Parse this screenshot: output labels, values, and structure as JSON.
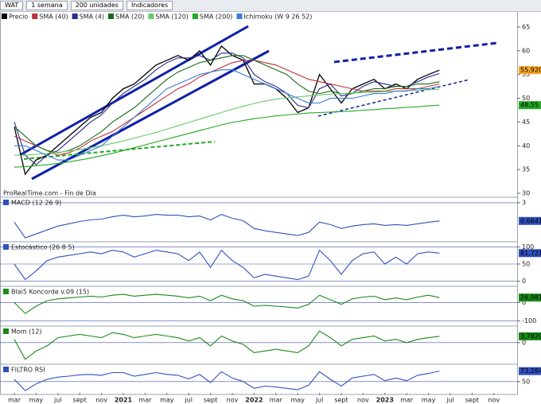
{
  "toolbar": {
    "symbol": "WAT",
    "period": "1 semana",
    "units": "200 unidades",
    "indicators": "Indicadores"
  },
  "chart_data": [
    {
      "type": "line",
      "annotation": "ProRealTime.com - Fin de Día",
      "categories": [
        "mar",
        null,
        "may",
        null,
        "jul",
        null,
        "sept",
        null,
        "nov",
        null,
        "2021",
        null,
        "mar",
        null,
        "may",
        null,
        "jul",
        null,
        "sept",
        null,
        "nov",
        null,
        "2022",
        null,
        "mar",
        null,
        "may",
        null,
        "jul",
        null,
        "sept",
        null,
        "nov",
        null,
        "2023",
        null,
        "mar",
        null,
        "may",
        null,
        "jul",
        null,
        "sept",
        null,
        "nov"
      ],
      "ylim": [
        29.5,
        66
      ],
      "yticks": [
        30,
        35,
        40,
        45,
        50,
        55,
        60,
        65
      ],
      "series": [
        {
          "name": "Precio",
          "color": "#000000",
          "values": [
            44,
            34,
            37,
            38,
            40,
            42,
            44,
            46,
            47,
            50,
            52,
            53,
            55,
            57,
            58,
            59,
            58,
            60,
            57,
            61,
            59,
            58,
            53,
            53,
            52,
            50,
            47,
            48,
            55,
            52,
            49,
            52,
            53,
            54,
            52,
            53,
            52,
            54,
            55,
            55.92,
            null,
            null,
            null,
            null,
            null
          ],
          "value_labels": [
            null,
            null,
            null,
            null,
            null,
            null,
            null,
            null,
            null,
            null,
            null,
            null,
            null,
            null,
            null,
            null,
            null,
            null,
            null,
            null,
            null,
            null,
            null,
            null,
            null,
            null,
            null,
            null,
            null,
            null,
            null,
            null,
            null,
            null,
            null,
            null,
            null,
            null,
            null,
            "55,920",
            null,
            null,
            null,
            null,
            null
          ]
        },
        {
          "name": "SMA (40)",
          "color": "#c0303a",
          "values": [
            42,
            41,
            40,
            39,
            38,
            38.5,
            39.5,
            41,
            42,
            43,
            44.5,
            46,
            47.5,
            49,
            50.5,
            52,
            53,
            54.5,
            55.5,
            56.5,
            57.5,
            58,
            58,
            57.5,
            57,
            56,
            55,
            54,
            53.5,
            53,
            52.5,
            52,
            51.5,
            51.5,
            51.5,
            52,
            52,
            52,
            52.5,
            53,
            null,
            null,
            null,
            null,
            null
          ]
        },
        {
          "name": "SMA (4)",
          "color": "#2a2a8a",
          "values": [
            45,
            38,
            36,
            38,
            39,
            41,
            43,
            45,
            46.5,
            49,
            51,
            52.5,
            54,
            56,
            57.5,
            58.5,
            58.5,
            59,
            58,
            59.5,
            59.5,
            58.5,
            55,
            53.5,
            52.5,
            51,
            48.5,
            48,
            52,
            53,
            50.5,
            51,
            52.5,
            53.5,
            53,
            52.5,
            52.5,
            53.5,
            54.5,
            55.2,
            null,
            null,
            null,
            null,
            null
          ]
        },
        {
          "name": "SMA (20)",
          "color": "#1a6a1a",
          "values": [
            44,
            42,
            40,
            39,
            38.5,
            39,
            40,
            41.5,
            43,
            45,
            46.5,
            48,
            50,
            52,
            54,
            55.5,
            56.5,
            57.5,
            58,
            58.5,
            59,
            59,
            58,
            57,
            56,
            55,
            53,
            51.5,
            51,
            51.5,
            51,
            51,
            51.5,
            52,
            52,
            52.5,
            52.5,
            53,
            53,
            53.5,
            null,
            null,
            null,
            null,
            null
          ]
        },
        {
          "name": "SMA (120)",
          "color": "#66cc66",
          "values": [
            38,
            38,
            38.2,
            38.4,
            38.6,
            38.9,
            39.2,
            39.6,
            40,
            40.5,
            41,
            41.6,
            42.2,
            42.8,
            43.5,
            44.2,
            44.9,
            45.6,
            46.3,
            47,
            47.7,
            48.3,
            48.9,
            49.4,
            49.8,
            50.1,
            50.3,
            50.5,
            50.7,
            50.9,
            51,
            51.1,
            51.2,
            51.3,
            51.4,
            51.5,
            51.6,
            51.7,
            51.8,
            51.9,
            null,
            null,
            null,
            null,
            null
          ]
        },
        {
          "name": "SMA (200)",
          "color": "#22aa22",
          "values": [
            35.5,
            35.6,
            35.8,
            36,
            36.3,
            36.6,
            37,
            37.4,
            37.9,
            38.4,
            39,
            39.6,
            40.2,
            40.8,
            41.4,
            42,
            42.6,
            43.2,
            43.8,
            44.4,
            44.9,
            45.3,
            45.7,
            46,
            46.3,
            46.5,
            46.7,
            46.9,
            47,
            47.1,
            47.2,
            47.3,
            47.5,
            47.6,
            47.8,
            47.9,
            48.1,
            48.2,
            48.4,
            48.55,
            null,
            null,
            null,
            null,
            null
          ],
          "value_labels": [
            null,
            null,
            null,
            null,
            null,
            null,
            null,
            null,
            null,
            null,
            null,
            null,
            null,
            null,
            null,
            null,
            null,
            null,
            null,
            null,
            null,
            null,
            null,
            null,
            null,
            null,
            null,
            null,
            null,
            null,
            null,
            null,
            null,
            null,
            null,
            null,
            null,
            null,
            null,
            "48,55",
            null,
            null,
            null,
            null,
            null
          ]
        },
        {
          "name": "Ichimoku (W 9 26 52)",
          "color": "#3a7ad8",
          "values": [
            40,
            40,
            39,
            38,
            37,
            37,
            38,
            39,
            40,
            42,
            44,
            46,
            48,
            50,
            52,
            53,
            54,
            55,
            55.5,
            56,
            56,
            55,
            54,
            53,
            52,
            51,
            50,
            49,
            49,
            50,
            50,
            50,
            50.5,
            51,
            51,
            51.5,
            51.5,
            52,
            52,
            52.5,
            null,
            null,
            null,
            null,
            null
          ]
        }
      ]
    },
    {
      "type": "line",
      "title": "MACD (12 26 9)",
      "ylim": [
        -1.8,
        3.5
      ],
      "yticks": [
        3
      ],
      "series": [
        {
          "name": "MACD",
          "color": "#3050c0",
          "values": [
            0.5,
            -1.5,
            -1,
            -0.5,
            0,
            0.3,
            0.6,
            0.8,
            0.9,
            1.2,
            1.4,
            1.2,
            1.3,
            1.5,
            1.4,
            1.4,
            1.2,
            1.3,
            0.8,
            1.5,
            1,
            0.7,
            -0.3,
            -0.6,
            -0.8,
            -1,
            -1.2,
            -0.8,
            0.5,
            0.2,
            -0.3,
            0,
            0.2,
            0.3,
            0.1,
            0.2,
            0.1,
            0.3,
            0.5,
            0.6641,
            null,
            null,
            null,
            null,
            null
          ],
          "value_labels": [
            null,
            null,
            null,
            null,
            null,
            null,
            null,
            null,
            null,
            null,
            null,
            null,
            null,
            null,
            null,
            null,
            null,
            null,
            null,
            null,
            null,
            null,
            null,
            null,
            null,
            null,
            null,
            null,
            null,
            null,
            null,
            null,
            null,
            null,
            null,
            null,
            null,
            null,
            null,
            "0,6641",
            null,
            null,
            null,
            null,
            null
          ]
        }
      ]
    },
    {
      "type": "line",
      "title": "Estocástico (26 8 5)",
      "ylim": [
        -10,
        110
      ],
      "yticks": [
        0,
        50,
        100
      ],
      "series": [
        {
          "name": "Estocástico",
          "color": "#3050c0",
          "values": [
            50,
            5,
            30,
            60,
            70,
            75,
            80,
            85,
            80,
            90,
            85,
            70,
            80,
            90,
            85,
            80,
            60,
            85,
            40,
            90,
            60,
            40,
            10,
            20,
            15,
            10,
            5,
            15,
            90,
            60,
            20,
            60,
            80,
            85,
            50,
            70,
            50,
            80,
            85,
            81.7218,
            null,
            null,
            null,
            null,
            null
          ],
          "value_labels": [
            null,
            null,
            null,
            null,
            null,
            null,
            null,
            null,
            null,
            null,
            null,
            null,
            null,
            null,
            null,
            null,
            null,
            null,
            null,
            null,
            null,
            null,
            null,
            null,
            null,
            null,
            null,
            null,
            null,
            null,
            null,
            null,
            null,
            null,
            null,
            null,
            null,
            null,
            null,
            "81,7218",
            null,
            null,
            null,
            null,
            null
          ]
        }
      ]
    },
    {
      "type": "line",
      "title": "Blai5 Koncorde v.09 (15)",
      "ylim": [
        -120,
        80
      ],
      "yticks": [
        0,
        -100
      ],
      "series": [
        {
          "name": "Koncorde",
          "color": "#1a8a1a",
          "values": [
            0,
            -60,
            -20,
            10,
            20,
            25,
            30,
            35,
            30,
            40,
            45,
            35,
            40,
            45,
            40,
            35,
            25,
            35,
            10,
            40,
            20,
            10,
            -20,
            -15,
            -20,
            -25,
            -30,
            -10,
            40,
            15,
            -10,
            20,
            30,
            35,
            15,
            25,
            15,
            30,
            40,
            26.981,
            null,
            null,
            null,
            null,
            null
          ],
          "value_labels": [
            null,
            null,
            null,
            null,
            null,
            null,
            null,
            null,
            null,
            null,
            null,
            null,
            null,
            null,
            null,
            null,
            null,
            null,
            null,
            null,
            null,
            null,
            null,
            null,
            null,
            null,
            null,
            null,
            null,
            null,
            null,
            null,
            null,
            null,
            null,
            null,
            null,
            null,
            null,
            "26,981",
            null,
            null,
            null,
            null,
            null
          ]
        }
      ]
    },
    {
      "type": "line",
      "title": "Mom (12)",
      "ylim": [
        -12,
        9
      ],
      "yticks": [
        0
      ],
      "series": [
        {
          "name": "Mom",
          "color": "#1a8a1a",
          "values": [
            2,
            -10,
            -5,
            -2,
            3,
            4,
            5,
            4,
            3,
            6,
            5,
            3,
            4,
            5,
            4,
            3,
            1,
            3,
            -2,
            4,
            1,
            -1,
            -6,
            -5,
            -4,
            -5,
            -6,
            -2,
            7,
            3,
            -2,
            2,
            3,
            4,
            1,
            2,
            0,
            2,
            3,
            3.782,
            null,
            null,
            null,
            null,
            null
          ],
          "value_labels": [
            null,
            null,
            null,
            null,
            null,
            null,
            null,
            null,
            null,
            null,
            null,
            null,
            null,
            null,
            null,
            null,
            null,
            null,
            null,
            null,
            null,
            null,
            null,
            null,
            null,
            null,
            null,
            null,
            null,
            null,
            null,
            null,
            null,
            null,
            null,
            null,
            null,
            null,
            null,
            "3,7820",
            null,
            null,
            null,
            null,
            null
          ]
        }
      ]
    },
    {
      "type": "line",
      "title": "FILTRO RSI",
      "ylim": [
        25,
        85
      ],
      "yticks": [
        50
      ],
      "series": [
        {
          "name": "RSI",
          "color": "#3050c0",
          "values": [
            55,
            30,
            45,
            55,
            60,
            62,
            65,
            66,
            64,
            70,
            70,
            62,
            66,
            70,
            66,
            64,
            56,
            66,
            48,
            72,
            58,
            50,
            35,
            40,
            38,
            35,
            32,
            42,
            72,
            55,
            40,
            58,
            62,
            66,
            52,
            58,
            52,
            64,
            68,
            73.284,
            null,
            null,
            null,
            null,
            null
          ],
          "value_labels": [
            null,
            null,
            null,
            null,
            null,
            null,
            null,
            null,
            null,
            null,
            null,
            null,
            null,
            null,
            null,
            null,
            null,
            null,
            null,
            null,
            null,
            null,
            null,
            null,
            null,
            null,
            null,
            null,
            null,
            null,
            null,
            null,
            null,
            null,
            null,
            null,
            null,
            null,
            null,
            "73,284",
            null,
            null,
            null,
            null,
            null
          ]
        }
      ]
    }
  ]
}
